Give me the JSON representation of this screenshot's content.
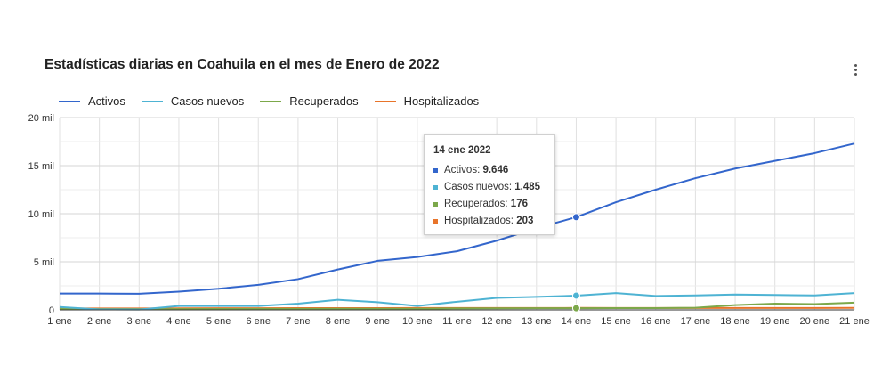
{
  "title": "Estadísticas diarias en Coahuila en el mes de Enero de 2022",
  "menu_icon": "more-vert-icon",
  "colors": {
    "Activos": "#3366cc",
    "Casos nuevos": "#4eb3d3",
    "Recuperados": "#7ca84a",
    "Hospitalizados": "#e8742a",
    "grid": "#e0e0e0",
    "axis": "#333333"
  },
  "chart_data": {
    "type": "line",
    "title": "Estadísticas diarias en Coahuila en el mes de Enero de 2022",
    "xlabel": "",
    "ylabel": "",
    "categories": [
      "1 ene",
      "2 ene",
      "3 ene",
      "4 ene",
      "5 ene",
      "6 ene",
      "7 ene",
      "8 ene",
      "9 ene",
      "10 ene",
      "11 ene",
      "12 ene",
      "13 ene",
      "14 ene",
      "15 ene",
      "16 ene",
      "17 ene",
      "18 ene",
      "19 ene",
      "20 ene",
      "21 ene"
    ],
    "y_ticks": [
      {
        "value": 0,
        "label": "0"
      },
      {
        "value": 5000,
        "label": "5 mil"
      },
      {
        "value": 10000,
        "label": "10 mil"
      },
      {
        "value": 15000,
        "label": "15 mil"
      },
      {
        "value": 20000,
        "label": "20 mil"
      }
    ],
    "ylim": [
      0,
      20000
    ],
    "grid": true,
    "legend_position": "top-left",
    "series": [
      {
        "name": "Activos",
        "values": [
          1700,
          1700,
          1680,
          1900,
          2200,
          2600,
          3200,
          4200,
          5100,
          5500,
          6100,
          7200,
          8500,
          9646,
          11200,
          12500,
          13700,
          14700,
          15500,
          16300,
          17300
        ]
      },
      {
        "name": "Casos nuevos",
        "values": [
          300,
          50,
          30,
          400,
          400,
          400,
          650,
          1050,
          800,
          400,
          850,
          1250,
          1350,
          1485,
          1750,
          1450,
          1500,
          1600,
          1550,
          1500,
          1750
        ]
      },
      {
        "name": "Recuperados",
        "values": [
          100,
          80,
          80,
          80,
          90,
          100,
          100,
          120,
          120,
          120,
          150,
          160,
          170,
          176,
          180,
          190,
          220,
          500,
          650,
          600,
          750
        ]
      },
      {
        "name": "Hospitalizados",
        "values": [
          150,
          150,
          150,
          160,
          170,
          170,
          180,
          190,
          190,
          200,
          200,
          200,
          200,
          203,
          200,
          200,
          200,
          200,
          200,
          200,
          210
        ]
      }
    ]
  },
  "tooltip": {
    "title": "14 ene 2022",
    "category_index": 13,
    "rows": [
      {
        "label": "Activos: ",
        "value": "9.646"
      },
      {
        "label": "Casos nuevos: ",
        "value": "1.485"
      },
      {
        "label": "Recuperados: ",
        "value": "176"
      },
      {
        "label": "Hospitalizados: ",
        "value": "203"
      }
    ]
  }
}
